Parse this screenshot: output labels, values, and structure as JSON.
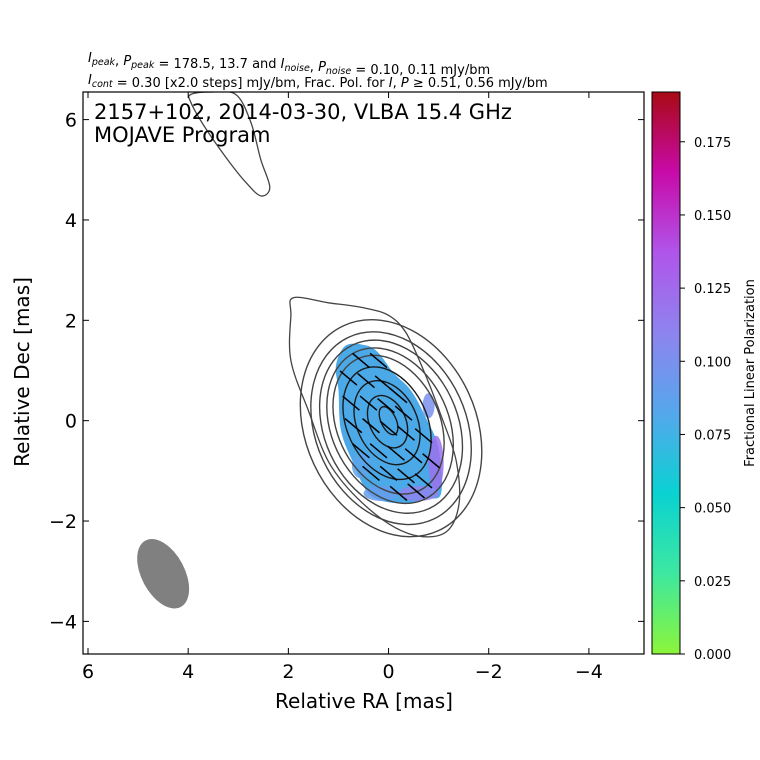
{
  "header": {
    "line1": [
      {
        "t": "I",
        "i": true
      },
      {
        "t": "peak",
        "sub": true
      },
      {
        "t": ", "
      },
      {
        "t": "P",
        "i": true
      },
      {
        "t": "peak",
        "sub": true
      },
      {
        "t": " = 178.5, 13.7 and "
      },
      {
        "t": "I",
        "i": true
      },
      {
        "t": "noise",
        "sub": true
      },
      {
        "t": ", "
      },
      {
        "t": "P",
        "i": true
      },
      {
        "t": "noise",
        "sub": true
      },
      {
        "t": " = 0.10, 0.11 mJy/bm"
      }
    ],
    "line2": [
      {
        "t": "I",
        "i": true
      },
      {
        "t": "cont",
        "sub": true
      },
      {
        "t": " = 0.30 [x2.0 steps] mJy/bm, Frac. Pol. for "
      },
      {
        "t": "I",
        "i": true
      },
      {
        "t": ", "
      },
      {
        "t": "P",
        "i": true
      },
      {
        "t": " ≥ 0.51, 0.56 mJy/bm"
      }
    ]
  },
  "chart_data": {
    "type": "contour",
    "title_line1": "2157+102, 2014-03-30, VLBA 15.4 GHz",
    "title_line2": "MOJAVE Program",
    "xlabel": "Relative RA [mas]",
    "ylabel": "Relative Dec [mas]",
    "xlim": [
      6.1,
      -5.1
    ],
    "ylim": [
      -4.65,
      6.55
    ],
    "x_ticks": [
      6,
      4,
      2,
      0,
      -2,
      -4
    ],
    "x_tick_labels": [
      "6",
      "4",
      "2",
      "0",
      "−2",
      "−4"
    ],
    "y_ticks": [
      6,
      4,
      2,
      0,
      -2,
      -4
    ],
    "y_tick_labels": [
      "6",
      "4",
      "2",
      "0",
      "−2",
      "−4"
    ],
    "colorbar": {
      "label": "Fractional Linear Polarization",
      "range": [
        0.0,
        0.192
      ],
      "ticks": [
        0.0,
        0.025,
        0.05,
        0.075,
        0.1,
        0.125,
        0.15,
        0.175
      ],
      "tick_labels": [
        "0.000",
        "0.025",
        "0.050",
        "0.075",
        "0.100",
        "0.125",
        "0.150",
        "0.175"
      ],
      "colors": [
        "#8cf53a",
        "#3de8a0",
        "#0ad2d2",
        "#55a7ec",
        "#8e84ee",
        "#b055ea",
        "#c80aa8",
        "#a80a14"
      ]
    },
    "beam": {
      "x": 4.5,
      "y": -3.05,
      "major_mas": 1.5,
      "minor_mas": 0.86,
      "pa_deg": -28,
      "color": "#808080"
    },
    "contour_color": "#444444",
    "core_contours": [
      {
        "cx": -0.05,
        "cy": -0.15,
        "sx": 1.7,
        "sy": 2.25
      },
      {
        "cx": -0.05,
        "cy": -0.15,
        "sx": 1.5,
        "sy": 2.0
      },
      {
        "cx": -0.05,
        "cy": -0.12,
        "sx": 1.33,
        "sy": 1.8
      },
      {
        "cx": -0.03,
        "cy": -0.1,
        "sx": 1.17,
        "sy": 1.62
      },
      {
        "cx": 0.0,
        "cy": -0.08,
        "sx": 1.02,
        "sy": 1.45
      },
      {
        "cx": 0.03,
        "cy": -0.05,
        "sx": 0.8,
        "sy": 1.18
      },
      {
        "cx": 0.03,
        "cy": -0.04,
        "sx": 0.6,
        "sy": 0.88
      },
      {
        "cx": 0.02,
        "cy": -0.02,
        "sx": 0.36,
        "sy": 0.55
      },
      {
        "cx": 0.0,
        "cy": 0.0,
        "sx": 0.15,
        "sy": 0.3
      }
    ],
    "outer_contour": [
      [
        1.9,
        2.45
      ],
      [
        1.2,
        2.35
      ],
      [
        0.5,
        2.25
      ],
      [
        0.0,
        2.1
      ],
      [
        -0.35,
        1.75
      ],
      [
        -0.7,
        1.0
      ],
      [
        -1.05,
        0.1
      ],
      [
        -1.35,
        -0.8
      ],
      [
        -1.4,
        -1.7
      ],
      [
        -1.1,
        -2.25
      ],
      [
        -0.4,
        -2.25
      ],
      [
        0.4,
        -1.75
      ],
      [
        1.15,
        -0.9
      ],
      [
        1.6,
        0.2
      ],
      [
        1.95,
        1.2
      ],
      [
        1.95,
        2.1
      ]
    ],
    "northern_contour": [
      [
        3.95,
        6.5
      ],
      [
        3.55,
        6.55
      ],
      [
        3.05,
        6.5
      ],
      [
        2.75,
        5.95
      ],
      [
        2.55,
        5.2
      ],
      [
        2.37,
        4.65
      ],
      [
        2.55,
        4.48
      ],
      [
        2.85,
        4.75
      ],
      [
        3.25,
        5.25
      ],
      [
        3.7,
        5.9
      ],
      [
        3.95,
        6.35
      ]
    ],
    "polarization_region": {
      "boundary": [
        [
          0.85,
          1.5
        ],
        [
          0.45,
          1.5
        ],
        [
          0.2,
          1.35
        ],
        [
          -0.1,
          0.95
        ],
        [
          -0.45,
          0.6
        ],
        [
          -0.75,
          0.05
        ],
        [
          -1.0,
          -0.55
        ],
        [
          -1.05,
          -1.45
        ],
        [
          -0.75,
          -1.55
        ],
        [
          -0.3,
          -1.65
        ],
        [
          0.35,
          -1.5
        ],
        [
          0.7,
          -0.85
        ],
        [
          0.95,
          -0.2
        ],
        [
          1.0,
          0.6
        ],
        [
          1.05,
          1.1
        ]
      ],
      "fill_color": "#4ba9e8",
      "edge_patches": [
        {
          "x": -0.95,
          "y": -0.85,
          "rx": 0.15,
          "ry": 0.55,
          "frac": 0.12
        },
        {
          "x": -0.6,
          "y": -1.45,
          "rx": 0.4,
          "ry": 0.15,
          "frac": 0.11
        },
        {
          "x": 0.15,
          "y": -1.45,
          "rx": 0.35,
          "ry": 0.15,
          "frac": 0.09
        },
        {
          "x": 0.55,
          "y": -0.9,
          "rx": 0.18,
          "ry": 0.25,
          "frac": 0.085
        },
        {
          "x": -0.8,
          "y": 0.3,
          "rx": 0.12,
          "ry": 0.25,
          "frac": 0.1
        }
      ]
    },
    "evpa_vectors": [
      {
        "x": 0.55,
        "y": 1.2
      },
      {
        "x": 0.2,
        "y": 1.2
      },
      {
        "x": 0.8,
        "y": 0.85
      },
      {
        "x": 0.45,
        "y": 0.8
      },
      {
        "x": 0.1,
        "y": 0.75
      },
      {
        "x": -0.2,
        "y": 0.5
      },
      {
        "x": 0.75,
        "y": 0.35
      },
      {
        "x": 0.4,
        "y": 0.35
      },
      {
        "x": 0.05,
        "y": 0.3
      },
      {
        "x": -0.3,
        "y": 0.15
      },
      {
        "x": 0.7,
        "y": -0.1
      },
      {
        "x": 0.35,
        "y": -0.1
      },
      {
        "x": 0.0,
        "y": -0.15
      },
      {
        "x": -0.35,
        "y": -0.25
      },
      {
        "x": -0.7,
        "y": -0.3
      },
      {
        "x": 0.55,
        "y": -0.6
      },
      {
        "x": 0.2,
        "y": -0.6
      },
      {
        "x": -0.15,
        "y": -0.65
      },
      {
        "x": -0.5,
        "y": -0.7
      },
      {
        "x": -0.85,
        "y": -0.8
      },
      {
        "x": 0.35,
        "y": -1.05
      },
      {
        "x": 0.0,
        "y": -1.05
      },
      {
        "x": -0.35,
        "y": -1.1
      },
      {
        "x": -0.7,
        "y": -1.2
      },
      {
        "x": -0.2,
        "y": -1.45
      },
      {
        "x": -0.55,
        "y": -1.4
      }
    ],
    "evpa_angle_deg": -40
  }
}
